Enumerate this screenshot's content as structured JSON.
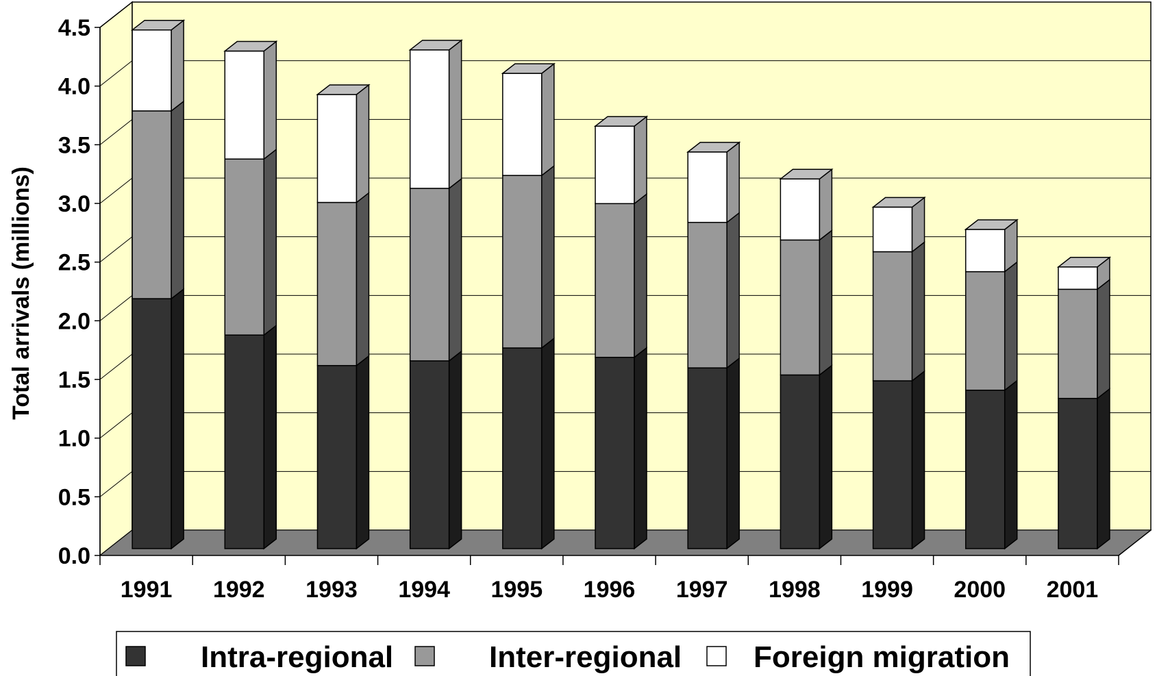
{
  "chart_data": {
    "type": "bar",
    "stacked": true,
    "three_d": true,
    "title": "",
    "xlabel": "",
    "ylabel": "Total arrivals (millions)",
    "ylim": [
      0,
      4.5
    ],
    "ytick_labels": [
      "0.0",
      "0.5",
      "1.0",
      "1.5",
      "2.0",
      "2.5",
      "3.0",
      "3.5",
      "4.0",
      "4.5"
    ],
    "categories": [
      "1991",
      "1992",
      "1993",
      "1994",
      "1995",
      "1996",
      "1997",
      "1998",
      "1999",
      "2000",
      "2001"
    ],
    "series": [
      {
        "name": "Intra-regional",
        "color": "#333333",
        "values": [
          2.13,
          1.82,
          1.56,
          1.6,
          1.71,
          1.63,
          1.54,
          1.48,
          1.43,
          1.35,
          1.28
        ]
      },
      {
        "name": "Inter-regional",
        "color": "#999999",
        "values": [
          1.6,
          1.5,
          1.39,
          1.47,
          1.47,
          1.31,
          1.24,
          1.15,
          1.1,
          1.01,
          0.93
        ]
      },
      {
        "name": "Foreign migration",
        "color": "#ffffff",
        "values": [
          0.69,
          0.92,
          0.92,
          1.18,
          0.87,
          0.66,
          0.6,
          0.52,
          0.38,
          0.36,
          0.19
        ]
      }
    ],
    "grid": true,
    "legend_position": "bottom",
    "colors": {
      "plot_wall": "#ffffcc",
      "floor": "#808080",
      "gridline": "#000000"
    }
  }
}
